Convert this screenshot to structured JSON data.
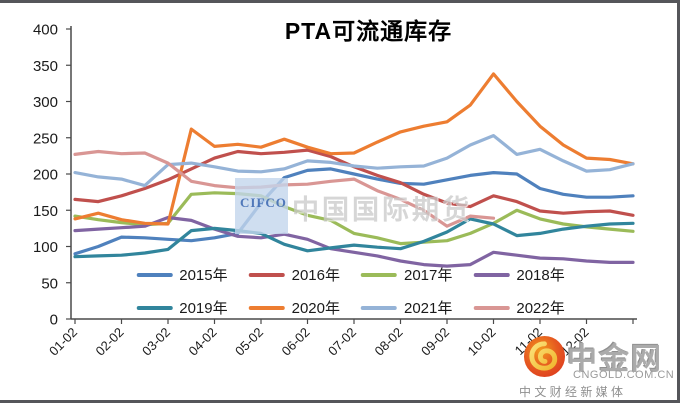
{
  "title": "PTA可流通库存",
  "watermarks": {
    "cifco": {
      "logo_text": "CIFCO",
      "text": "中国国际期货",
      "square_color": "#C3D6EC",
      "logo_text_color": "#3A67B1",
      "text_color": "#C9C9C9"
    },
    "cngold": {
      "brand": "中金网",
      "domain": "CNGOLD.COM.CN",
      "tagline": "中 文 财 经 新 媒 体",
      "circle_outer_color": "#DD3B1F",
      "circle_inner_color": "#F29B1D",
      "swirl_color": "#F8CE46",
      "text_color": "#ABABAB"
    }
  },
  "chart_data": {
    "type": "line",
    "title": "PTA可流通库存",
    "xlabel": "",
    "ylabel": "",
    "ylim": [
      0,
      400
    ],
    "y_ticks": [
      0,
      50,
      100,
      150,
      200,
      250,
      300,
      350,
      400
    ],
    "x_tick_labels": [
      "01-02",
      "02-02",
      "03-02",
      "04-02",
      "05-02",
      "06-02",
      "07-02",
      "08-02",
      "09-02",
      "10-02",
      "11-02",
      "12-02"
    ],
    "x_unit": "month-day (weekly data)",
    "x_start_month": 1,
    "x_step_months": 0.5,
    "grid": false,
    "legend_position": "bottom, two rows inside plot",
    "series": [
      {
        "name": "2015年",
        "color": "#4F81BD",
        "values": [
          90,
          100,
          113,
          112,
          110,
          108,
          112,
          118,
          160,
          195,
          205,
          207,
          200,
          193,
          187,
          186,
          192,
          198,
          202,
          200,
          180,
          172,
          168,
          168,
          170
        ]
      },
      {
        "name": "2016年",
        "color": "#C0504D",
        "values": [
          165,
          162,
          170,
          180,
          192,
          207,
          222,
          231,
          228,
          230,
          233,
          224,
          210,
          198,
          188,
          172,
          160,
          155,
          170,
          162,
          149,
          146,
          148,
          149,
          143
        ]
      },
      {
        "name": "2017年",
        "color": "#9BBB59",
        "values": [
          142,
          137,
          133,
          130,
          132,
          172,
          174,
          173,
          170,
          155,
          143,
          136,
          118,
          112,
          104,
          106,
          108,
          118,
          132,
          150,
          138,
          131,
          127,
          124,
          121
        ]
      },
      {
        "name": "2018年",
        "color": "#8064A2",
        "values": [
          122,
          124,
          126,
          128,
          140,
          136,
          124,
          114,
          112,
          117,
          110,
          97,
          92,
          87,
          80,
          75,
          73,
          75,
          92,
          88,
          84,
          83,
          80,
          78,
          78
        ]
      },
      {
        "name": "2019年",
        "color": "#31859C",
        "values": [
          86,
          87,
          88,
          91,
          96,
          122,
          125,
          122,
          118,
          103,
          94,
          98,
          102,
          99,
          97,
          107,
          120,
          138,
          131,
          115,
          118,
          124,
          128,
          131,
          132
        ]
      },
      {
        "name": "2020年",
        "color": "#ED7D31",
        "values": [
          138,
          146,
          137,
          132,
          131,
          262,
          238,
          241,
          237,
          248,
          237,
          228,
          229,
          244,
          258,
          266,
          272,
          295,
          338,
          300,
          266,
          240,
          222,
          220,
          214
        ]
      },
      {
        "name": "2021年",
        "color": "#95B3D7",
        "values": [
          202,
          196,
          193,
          184,
          213,
          215,
          210,
          204,
          203,
          207,
          218,
          216,
          211,
          208,
          210,
          211,
          222,
          240,
          253,
          227,
          234,
          218,
          204,
          206,
          214
        ]
      },
      {
        "name": "2022年",
        "color": "#D99694",
        "values": [
          227,
          231,
          228,
          229,
          215,
          190,
          184,
          181,
          182,
          185,
          186,
          190,
          193,
          177,
          165,
          150,
          128,
          142,
          139
        ]
      }
    ]
  }
}
